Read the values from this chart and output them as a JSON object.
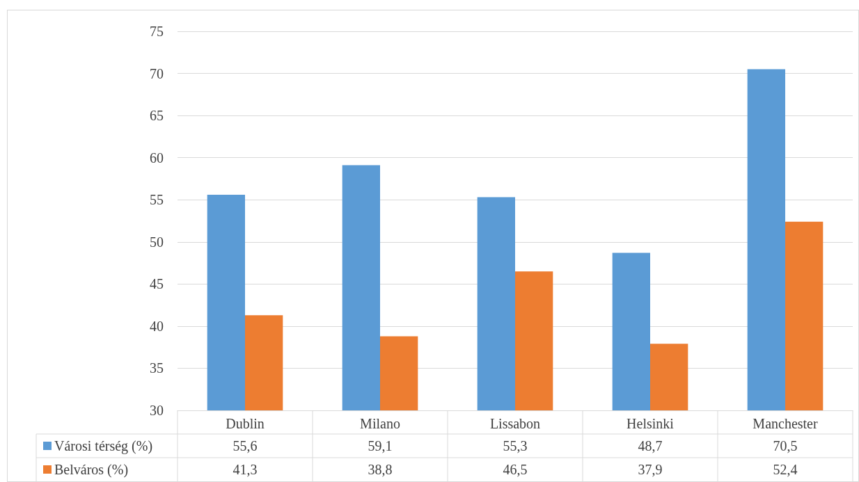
{
  "chart_data": {
    "type": "bar",
    "categories": [
      "Dublin",
      "Milano",
      "Lissabon",
      "Helsinki",
      "Manchester"
    ],
    "series": [
      {
        "name": "Városi térség (%)",
        "color": "#5b9bd5",
        "values": [
          55.6,
          59.1,
          55.3,
          48.7,
          70.5
        ],
        "value_labels": [
          "55,6",
          "59,1",
          "55,3",
          "48,7",
          "70,5"
        ]
      },
      {
        "name": "Belváros (%)",
        "color": "#ed7d31",
        "values": [
          41.3,
          38.8,
          46.5,
          37.9,
          52.4
        ],
        "value_labels": [
          "41,3",
          "38,8",
          "46,5",
          "37,9",
          "52,4"
        ]
      }
    ],
    "ylim": [
      30,
      75
    ],
    "yticks": [
      30,
      35,
      40,
      45,
      50,
      55,
      60,
      65,
      70,
      75
    ],
    "grid": "y",
    "legend": "bottom"
  }
}
